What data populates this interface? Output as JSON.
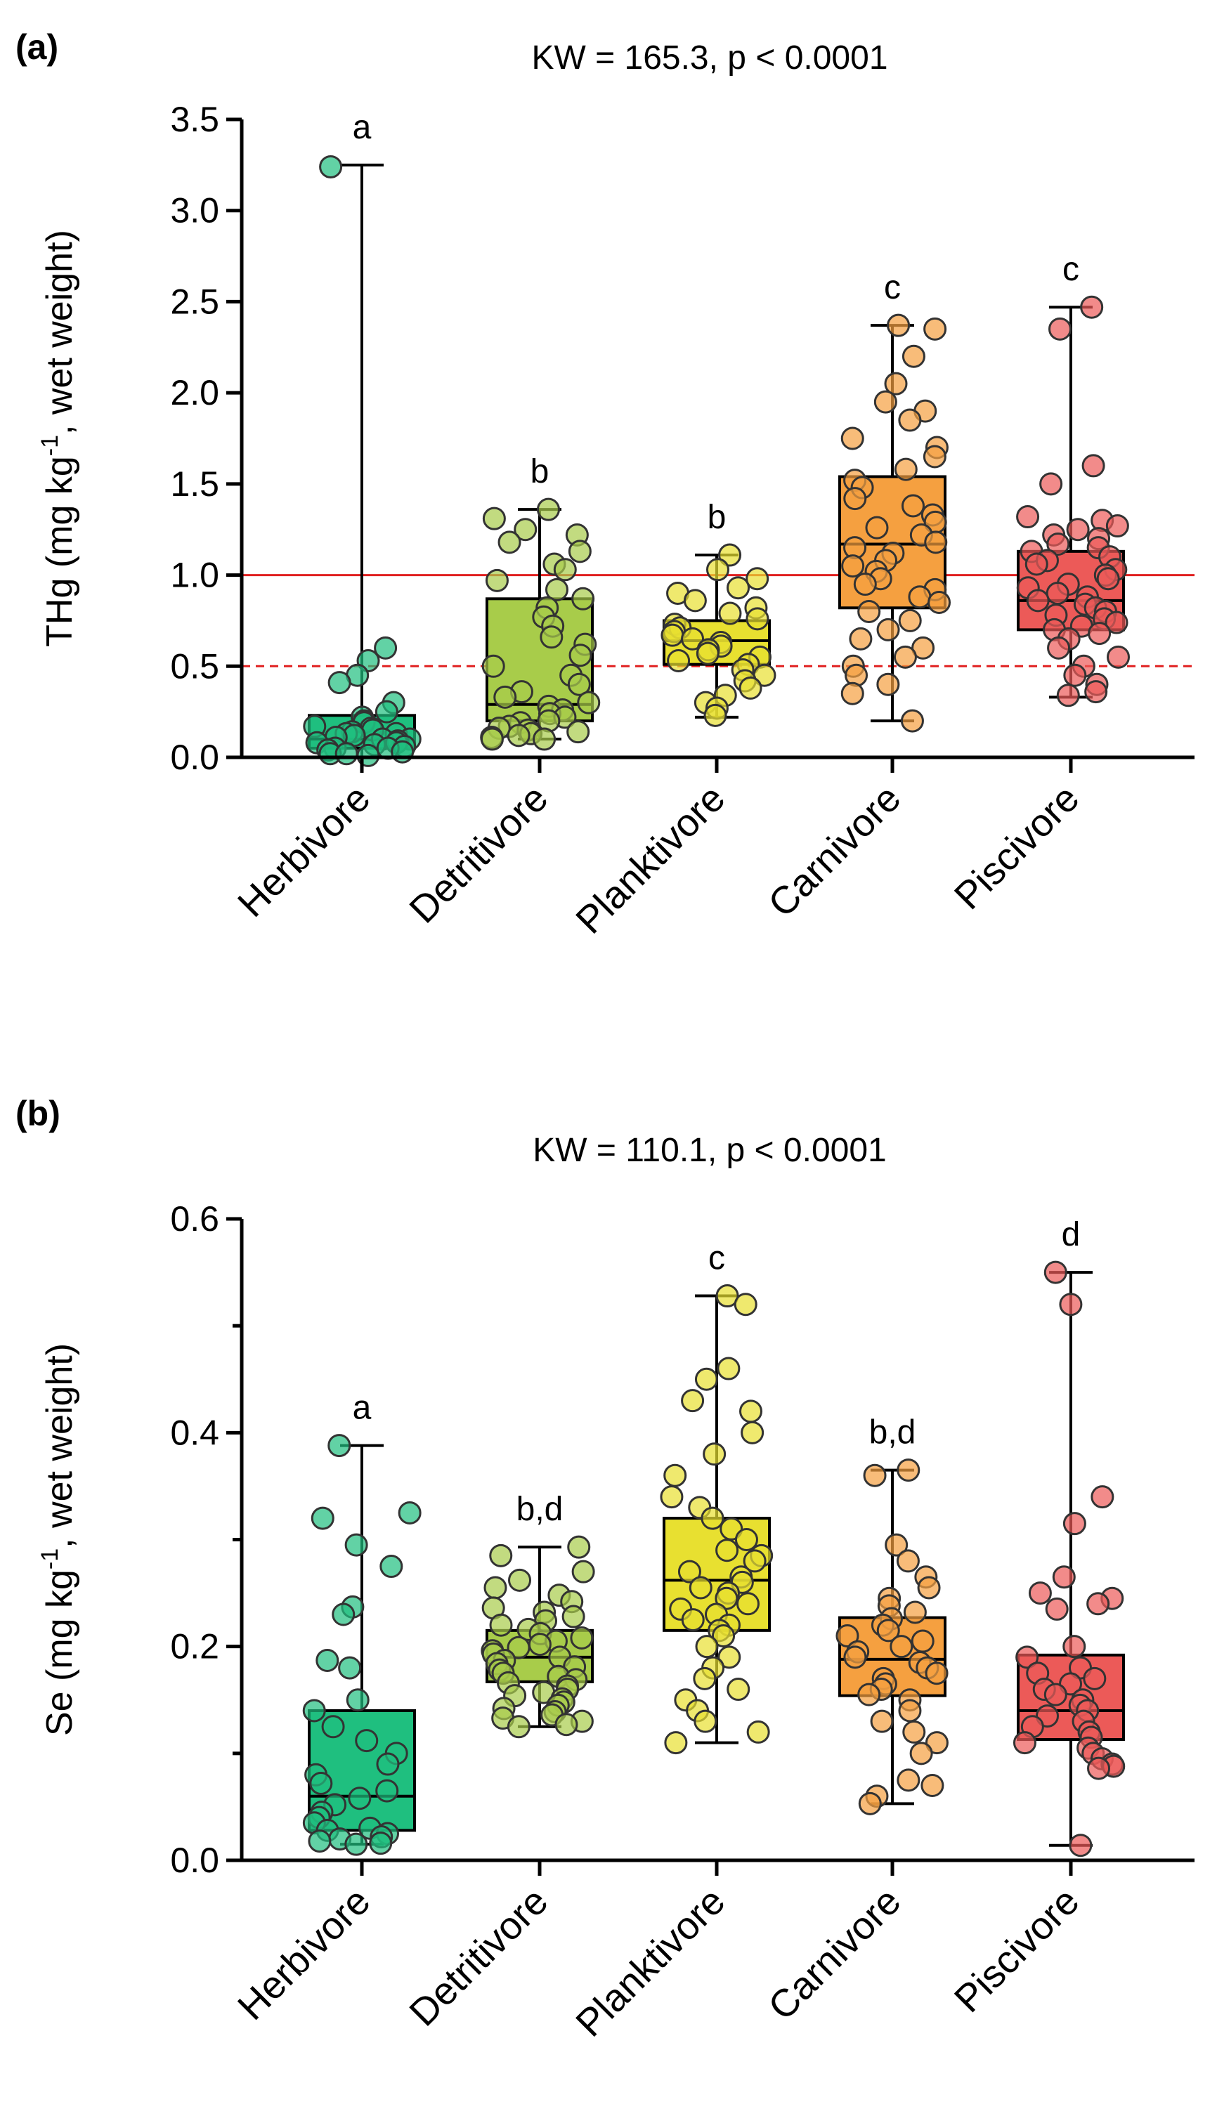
{
  "chart_data": [
    {
      "type": "box",
      "panel_label": "(a)",
      "stat_text": "KW = 165.3, p < 0.0001",
      "ylabel": {
        "main": "THg (mg kg",
        "sup": "-1",
        "rest": ", wet weight)"
      },
      "ylim": [
        0,
        3.5
      ],
      "yticks": [
        0.0,
        0.5,
        1.0,
        1.5,
        2.0,
        2.5,
        3.0,
        3.5
      ],
      "ytick_labels": [
        "0.0",
        "0.5",
        "1.0",
        "1.5",
        "2.0",
        "2.5",
        "3.0",
        "3.5"
      ],
      "categories": [
        "Herbivore",
        "Detritivore",
        "Planktivore",
        "Carnivore",
        "Piscivore"
      ],
      "colors": [
        "#1fbf7f",
        "#a8cc4a",
        "#e8e030",
        "#f5a040",
        "#ec5a58"
      ],
      "boxes": [
        {
          "min": 0.0,
          "q1": 0.05,
          "median": 0.1,
          "q3": 0.23,
          "max": 3.25,
          "letter": "a"
        },
        {
          "min": 0.1,
          "q1": 0.2,
          "median": 0.29,
          "q3": 0.87,
          "max": 1.36,
          "letter": "b"
        },
        {
          "min": 0.22,
          "q1": 0.51,
          "median": 0.64,
          "q3": 0.75,
          "max": 1.11,
          "letter": "b"
        },
        {
          "min": 0.2,
          "q1": 0.82,
          "median": 1.17,
          "q3": 1.54,
          "max": 2.37,
          "letter": "c"
        },
        {
          "min": 0.33,
          "q1": 0.7,
          "median": 0.86,
          "q3": 1.13,
          "max": 2.47,
          "letter": "c"
        }
      ],
      "points": [
        [
          3.24,
          0.6,
          0.53,
          0.45,
          0.41,
          0.3,
          0.25,
          0.22,
          0.2,
          0.19,
          0.17,
          0.16,
          0.15,
          0.14,
          0.13,
          0.13,
          0.12,
          0.11,
          0.1,
          0.1,
          0.09,
          0.08,
          0.08,
          0.07,
          0.06,
          0.05,
          0.05,
          0.04,
          0.03,
          0.02,
          0.02,
          0.01
        ],
        [
          1.36,
          1.31,
          1.25,
          1.22,
          1.18,
          1.13,
          1.06,
          1.03,
          0.97,
          0.92,
          0.87,
          0.82,
          0.77,
          0.72,
          0.66,
          0.62,
          0.56,
          0.5,
          0.45,
          0.4,
          0.36,
          0.33,
          0.3,
          0.28,
          0.26,
          0.24,
          0.22,
          0.2,
          0.19,
          0.17,
          0.16,
          0.15,
          0.14,
          0.13,
          0.12,
          0.11,
          0.1,
          0.1
        ],
        [
          1.11,
          1.03,
          0.98,
          0.93,
          0.9,
          0.86,
          0.82,
          0.79,
          0.76,
          0.73,
          0.71,
          0.69,
          0.67,
          0.65,
          0.63,
          0.61,
          0.59,
          0.57,
          0.55,
          0.53,
          0.51,
          0.48,
          0.45,
          0.42,
          0.38,
          0.34,
          0.3,
          0.27,
          0.23
        ],
        [
          2.37,
          2.35,
          2.2,
          2.05,
          1.95,
          1.9,
          1.85,
          1.75,
          1.7,
          1.65,
          1.58,
          1.52,
          1.48,
          1.42,
          1.38,
          1.33,
          1.29,
          1.26,
          1.22,
          1.18,
          1.15,
          1.12,
          1.08,
          1.05,
          1.02,
          0.98,
          0.95,
          0.92,
          0.88,
          0.85,
          0.8,
          0.75,
          0.7,
          0.65,
          0.6,
          0.55,
          0.5,
          0.45,
          0.4,
          0.35,
          0.2
        ],
        [
          2.47,
          2.35,
          1.6,
          1.5,
          1.32,
          1.3,
          1.27,
          1.25,
          1.22,
          1.2,
          1.17,
          1.15,
          1.13,
          1.1,
          1.08,
          1.06,
          1.03,
          1.0,
          0.98,
          0.95,
          0.93,
          0.9,
          0.88,
          0.86,
          0.84,
          0.82,
          0.8,
          0.78,
          0.76,
          0.74,
          0.72,
          0.7,
          0.68,
          0.65,
          0.6,
          0.55,
          0.5,
          0.45,
          0.4,
          0.36,
          0.34
        ]
      ],
      "reference_lines": [
        {
          "y": 1.0,
          "color": "#e02020",
          "style": "solid"
        },
        {
          "y": 0.5,
          "color": "#e02020",
          "style": "dashed"
        }
      ]
    },
    {
      "type": "box",
      "panel_label": "(b)",
      "stat_text": "KW = 110.1, p < 0.0001",
      "ylabel": {
        "main": "Se (mg kg",
        "sup": "-1",
        "rest": ", wet weight)"
      },
      "ylim": [
        0,
        0.6
      ],
      "yticks": [
        0.0,
        0.2,
        0.4,
        0.6
      ],
      "ytick_labels": [
        "0.0",
        "0.2",
        "0.4",
        "0.6"
      ],
      "minor_yticks": [
        0.1,
        0.3,
        0.5
      ],
      "categories": [
        "Herbivore",
        "Detritivore",
        "Planktivore",
        "Carnivore",
        "Piscivore"
      ],
      "colors": [
        "#1fbf7f",
        "#a8cc4a",
        "#e8e030",
        "#f5a040",
        "#ec5a58"
      ],
      "boxes": [
        {
          "min": 0.015,
          "q1": 0.028,
          "median": 0.06,
          "q3": 0.14,
          "max": 0.388,
          "letter": "a"
        },
        {
          "min": 0.125,
          "q1": 0.167,
          "median": 0.19,
          "q3": 0.215,
          "max": 0.293,
          "letter": "b,d"
        },
        {
          "min": 0.11,
          "q1": 0.215,
          "median": 0.262,
          "q3": 0.32,
          "max": 0.528,
          "letter": "c"
        },
        {
          "min": 0.053,
          "q1": 0.154,
          "median": 0.188,
          "q3": 0.227,
          "max": 0.365,
          "letter": "b,d"
        },
        {
          "min": 0.014,
          "q1": 0.113,
          "median": 0.14,
          "q3": 0.192,
          "max": 0.55,
          "letter": "d"
        }
      ],
      "points": [
        [
          0.388,
          0.325,
          0.32,
          0.295,
          0.275,
          0.237,
          0.23,
          0.187,
          0.18,
          0.15,
          0.14,
          0.125,
          0.112,
          0.1,
          0.09,
          0.08,
          0.072,
          0.065,
          0.058,
          0.052,
          0.045,
          0.04,
          0.035,
          0.03,
          0.028,
          0.025,
          0.022,
          0.02,
          0.018,
          0.016,
          0.015
        ],
        [
          0.293,
          0.285,
          0.27,
          0.262,
          0.255,
          0.248,
          0.242,
          0.236,
          0.232,
          0.228,
          0.224,
          0.22,
          0.216,
          0.212,
          0.208,
          0.205,
          0.202,
          0.199,
          0.196,
          0.193,
          0.19,
          0.187,
          0.184,
          0.181,
          0.178,
          0.175,
          0.172,
          0.169,
          0.166,
          0.163,
          0.16,
          0.157,
          0.154,
          0.151,
          0.148,
          0.145,
          0.142,
          0.139,
          0.136,
          0.133,
          0.13,
          0.127,
          0.125
        ],
        [
          0.528,
          0.52,
          0.46,
          0.45,
          0.43,
          0.42,
          0.4,
          0.38,
          0.36,
          0.34,
          0.33,
          0.32,
          0.31,
          0.3,
          0.29,
          0.285,
          0.28,
          0.27,
          0.265,
          0.26,
          0.255,
          0.25,
          0.245,
          0.24,
          0.235,
          0.23,
          0.225,
          0.22,
          0.215,
          0.21,
          0.2,
          0.19,
          0.18,
          0.17,
          0.16,
          0.15,
          0.14,
          0.13,
          0.12,
          0.11
        ],
        [
          0.365,
          0.36,
          0.295,
          0.28,
          0.265,
          0.255,
          0.245,
          0.238,
          0.232,
          0.226,
          0.22,
          0.215,
          0.21,
          0.205,
          0.2,
          0.195,
          0.19,
          0.185,
          0.18,
          0.175,
          0.17,
          0.165,
          0.16,
          0.155,
          0.15,
          0.14,
          0.13,
          0.12,
          0.11,
          0.1,
          0.075,
          0.07,
          0.06,
          0.053
        ],
        [
          0.55,
          0.52,
          0.34,
          0.315,
          0.265,
          0.25,
          0.245,
          0.24,
          0.235,
          0.2,
          0.19,
          0.18,
          0.175,
          0.17,
          0.165,
          0.16,
          0.155,
          0.15,
          0.145,
          0.14,
          0.135,
          0.13,
          0.125,
          0.12,
          0.115,
          0.11,
          0.105,
          0.1,
          0.095,
          0.09,
          0.088,
          0.086,
          0.014
        ]
      ]
    }
  ]
}
